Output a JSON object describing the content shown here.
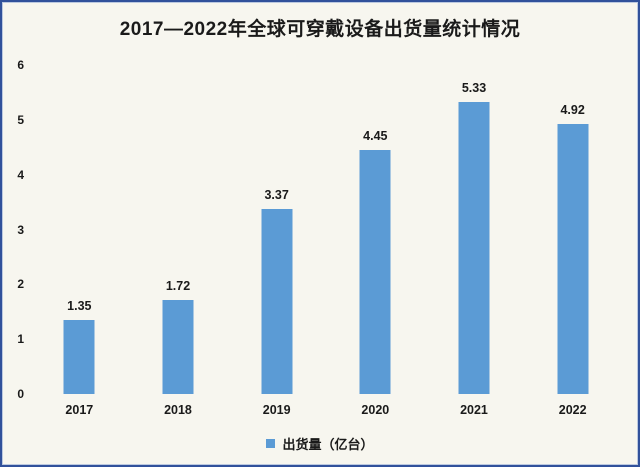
{
  "title": "2017—2022年全球可穿戴设备出货量统计情况",
  "colors": {
    "bar": "#5B9BD5",
    "background": "#F7F6EF",
    "frame_border": "#31519B",
    "text": "#1A1A1A"
  },
  "legend": {
    "label": "出货量（亿台）",
    "swatch_color": "#5B9BD5"
  },
  "chart_data": {
    "type": "bar",
    "categories": [
      "2017",
      "2018",
      "2019",
      "2020",
      "2021",
      "2022"
    ],
    "values": [
      1.35,
      1.72,
      3.37,
      4.45,
      5.33,
      4.92
    ],
    "data_labels": [
      "1.35",
      "1.72",
      "3.37",
      "4.45",
      "5.33",
      "4.92"
    ],
    "title": "2017—2022年全球可穿戴设备出货量统计情况",
    "xlabel": "",
    "ylabel": "",
    "ylim": [
      0,
      6
    ],
    "yticks": [
      0,
      1,
      2,
      3,
      4,
      5,
      6
    ],
    "grid": false,
    "legend": [
      "出货量（亿台）"
    ],
    "legend_position": "bottom",
    "bar_color": "#5B9BD5"
  }
}
